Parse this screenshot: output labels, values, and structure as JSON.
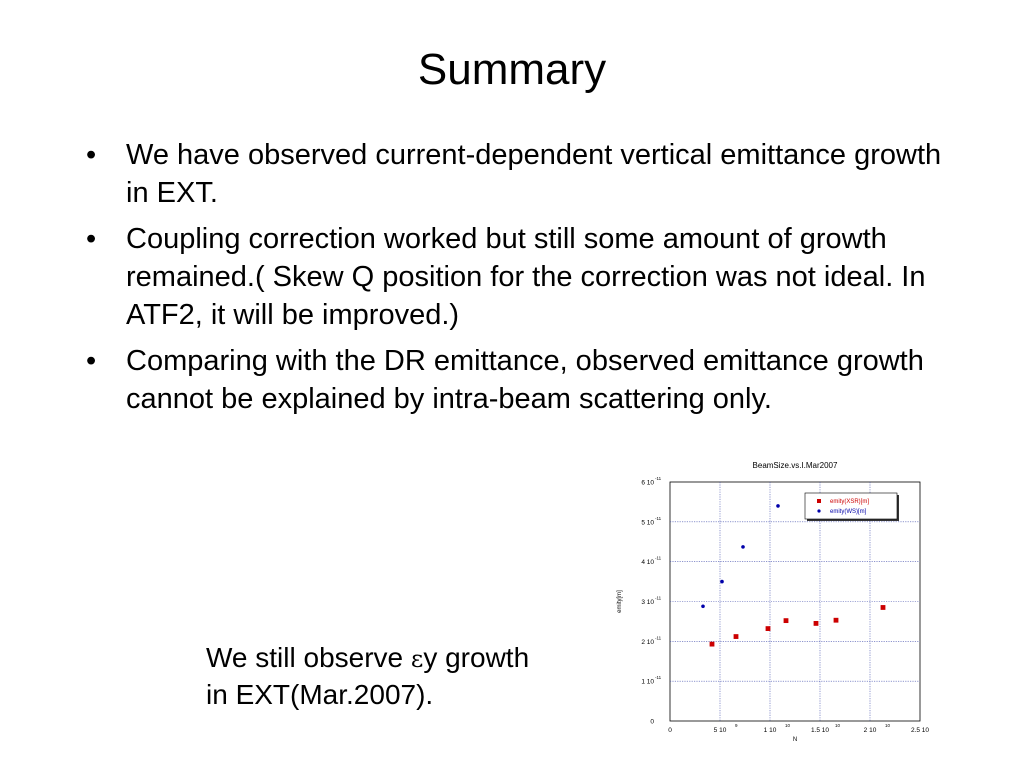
{
  "slide": {
    "title": "Summary",
    "bullets": [
      "We have observed current-dependent vertical emittance growth in EXT.",
      "Coupling correction worked but still some amount of growth remained.( Skew Q position for the correction was not ideal. In ATF2, it will be improved.)",
      "Comparing with the DR emittance, observed emittance growth cannot be explained by intra-beam scattering only."
    ],
    "bullet_marker": "•",
    "note": {
      "pre": "We still observe ",
      "symbol": "ε",
      "post": "y growth",
      "line2": "in EXT(Mar.2007)."
    }
  },
  "chart_data": {
    "type": "scatter",
    "title": "BeamSize.vs.I.Mar2007",
    "xlabel": "N",
    "ylabel": "emity[m]",
    "xlim": [
      0,
      25000000000
    ],
    "ylim": [
      0,
      6e-11
    ],
    "grid": true,
    "legend_position": "top-right",
    "x_ticks": [
      {
        "base": "0",
        "exp": ""
      },
      {
        "base": "5 10",
        "exp": "9"
      },
      {
        "base": "1 10",
        "exp": "10"
      },
      {
        "base": "1.5 10",
        "exp": "10"
      },
      {
        "base": "2 10",
        "exp": "10"
      },
      {
        "base": "2.5 10",
        "exp": "10"
      }
    ],
    "y_ticks": [
      {
        "base": "0",
        "exp": ""
      },
      {
        "base": "1 10",
        "exp": "-11"
      },
      {
        "base": "2 10",
        "exp": "-11"
      },
      {
        "base": "3 10",
        "exp": "-11"
      },
      {
        "base": "4 10",
        "exp": "-11"
      },
      {
        "base": "5 10",
        "exp": "-11"
      },
      {
        "base": "6 10",
        "exp": "-11"
      }
    ],
    "series": [
      {
        "name": "emity(XSR)[m]",
        "marker": "square",
        "color": "#cc0000",
        "x": [
          4200000000,
          6600000000,
          9800000000,
          11600000000,
          14600000000,
          16600000000,
          21300000000
        ],
        "y": [
          1.93e-11,
          2.12e-11,
          2.32e-11,
          2.52e-11,
          2.45e-11,
          2.53e-11,
          2.85e-11
        ]
      },
      {
        "name": "emity(WS)[m]",
        "marker": "circle",
        "color": "#0000aa",
        "x": [
          3300000000,
          5200000000,
          7300000000,
          10800000000
        ],
        "y": [
          2.88e-11,
          3.5e-11,
          4.37e-11,
          5.4e-11
        ]
      }
    ]
  }
}
